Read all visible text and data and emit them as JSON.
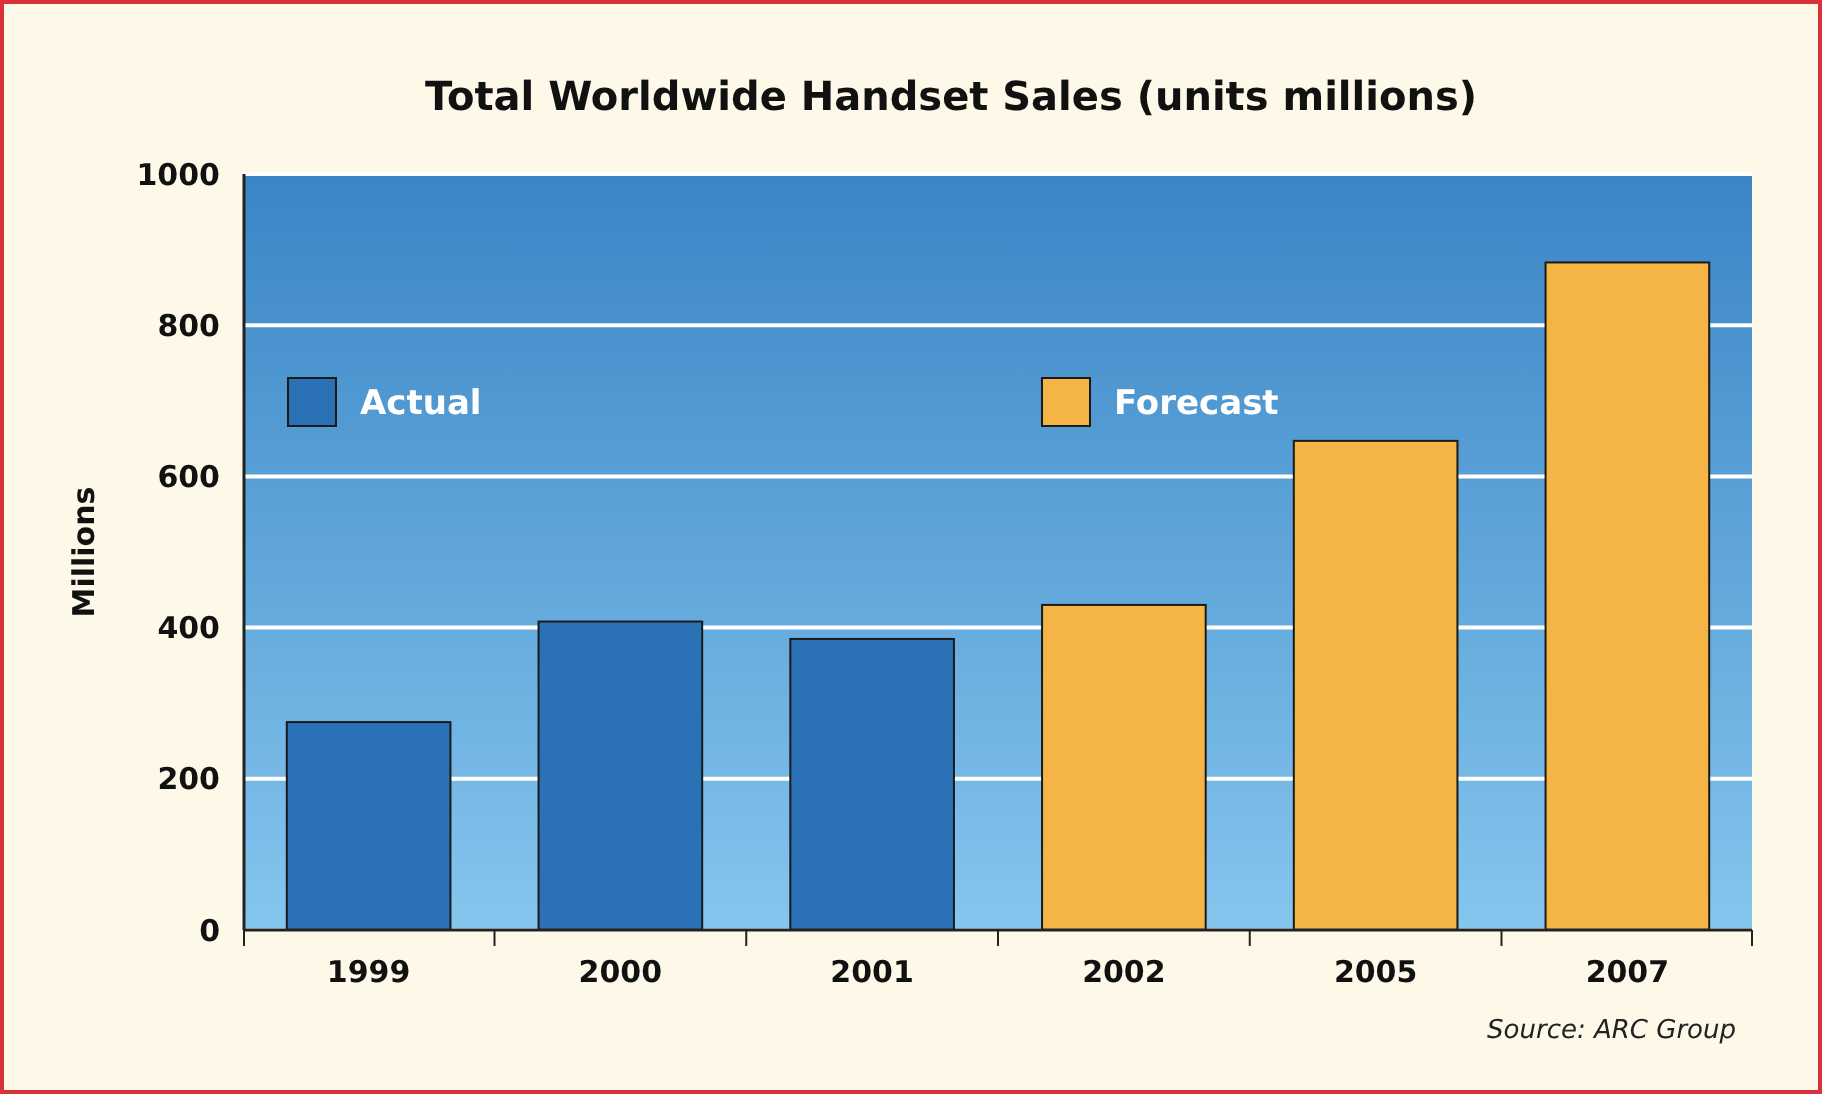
{
  "chart_data": {
    "type": "bar",
    "title": "Total Worldwide Handset Sales (units millions)",
    "ylabel": "Millions",
    "categories": [
      "1999",
      "2000",
      "2001",
      "2002",
      "2005",
      "2007"
    ],
    "series": [
      {
        "name": "Actual",
        "color": "#2a72b5",
        "values": [
          275,
          408,
          385,
          null,
          null,
          null
        ]
      },
      {
        "name": "Forecast",
        "color": "#f4b446",
        "values": [
          null,
          null,
          null,
          430,
          647,
          883
        ]
      }
    ],
    "stacked": true,
    "ylim": [
      0,
      1000
    ],
    "yticks": [
      0,
      200,
      400,
      600,
      800,
      1000
    ],
    "grid": "y",
    "legend": "top",
    "annotations": [
      "Source: ARC Group"
    ]
  }
}
